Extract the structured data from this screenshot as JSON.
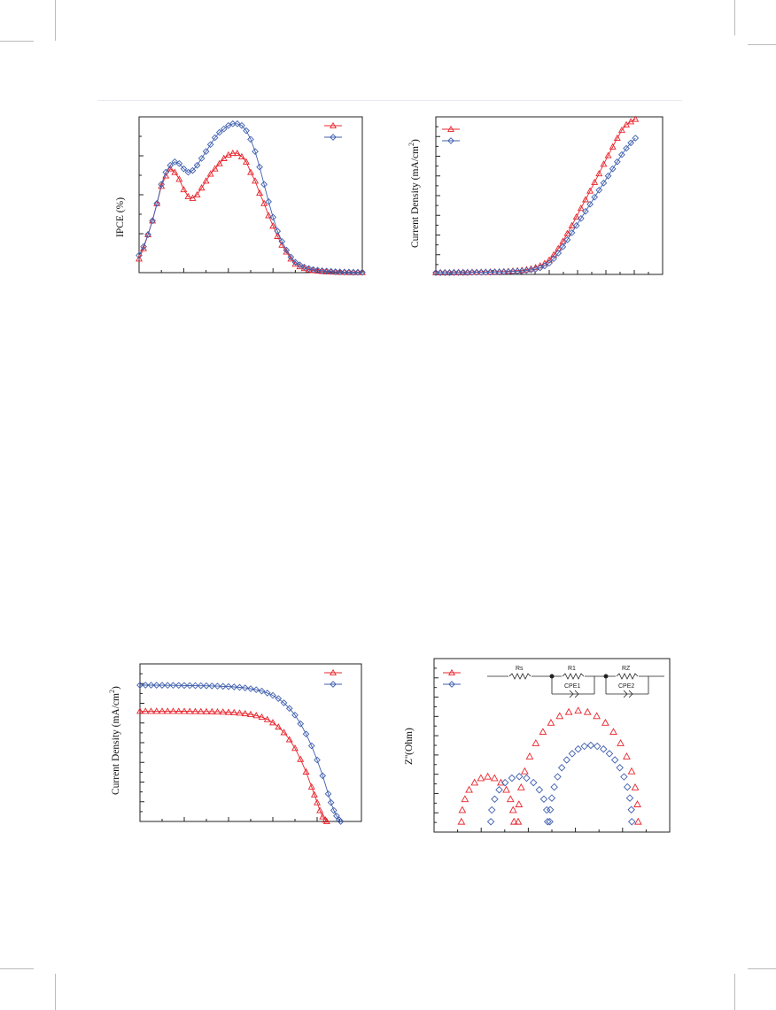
{
  "colors": {
    "red": "#e8242c",
    "blue": "#3f5fae"
  },
  "charts": [
    {
      "id": "ipce",
      "type": "scatter-line",
      "ylabel": "IPCE (%)",
      "xlabel": "",
      "xlim": [
        300,
        800
      ],
      "ylim": [
        0,
        90
      ],
      "legend_position": "top-right",
      "series": [
        {
          "name": "",
          "marker": "triangle",
          "color": "#e8242c",
          "x": [
            300,
            310,
            320,
            330,
            340,
            350,
            360,
            370,
            380,
            390,
            400,
            410,
            420,
            430,
            440,
            450,
            460,
            470,
            480,
            490,
            500,
            510,
            520,
            530,
            540,
            550,
            560,
            570,
            580,
            590,
            600,
            610,
            620,
            630,
            640,
            650,
            660,
            670,
            680,
            690,
            700,
            710,
            720,
            730,
            740,
            750,
            760,
            770,
            780,
            790,
            800
          ],
          "y": [
            8,
            14,
            22,
            30,
            40,
            50,
            56,
            60,
            58,
            54,
            48,
            44,
            43,
            45,
            49,
            53,
            57,
            60,
            63,
            66,
            68,
            69,
            69,
            67,
            64,
            58,
            53,
            46,
            40,
            33,
            27,
            21,
            16,
            12,
            8,
            5,
            3.5,
            2.5,
            1.8,
            1.3,
            1,
            0.8,
            0.6,
            0.5,
            0.4,
            0.3,
            0.3,
            0.2,
            0.2,
            0.2,
            0.2
          ]
        },
        {
          "name": "",
          "marker": "diamond",
          "color": "#3f5fae",
          "x": [
            300,
            310,
            320,
            330,
            340,
            350,
            360,
            370,
            380,
            390,
            400,
            410,
            420,
            430,
            440,
            450,
            460,
            470,
            480,
            490,
            500,
            510,
            520,
            530,
            540,
            550,
            560,
            570,
            580,
            590,
            600,
            610,
            620,
            630,
            640,
            650,
            660,
            670,
            680,
            690,
            700,
            710,
            720,
            730,
            740,
            750,
            760,
            770,
            780,
            790,
            800
          ],
          "y": [
            10,
            15,
            22,
            30,
            40,
            51,
            58,
            62,
            64,
            63,
            60,
            58,
            59,
            62,
            66,
            70,
            74,
            78,
            81,
            83,
            85,
            86,
            86,
            85,
            82,
            77,
            70,
            61,
            51,
            41,
            32,
            24,
            18,
            13,
            9,
            6,
            4.5,
            3.2,
            2.4,
            1.8,
            1.4,
            1.1,
            0.9,
            0.7,
            0.5,
            0.4,
            0.3,
            0.3,
            0.2,
            0.2,
            0.2
          ]
        }
      ]
    },
    {
      "id": "jv-dark",
      "type": "scatter-line",
      "ylabel": "Current Density (mA/cm",
      "ylabel_sup": "2",
      "ylabel_tail": ")",
      "xlabel": "",
      "xlim": [
        0,
        1
      ],
      "ylim": [
        0,
        100
      ],
      "legend_position": "top-left",
      "series": [
        {
          "name": "",
          "marker": "triangle",
          "color": "#e8242c",
          "x": [
            0,
            0.02,
            0.04,
            0.06,
            0.08,
            0.1,
            0.12,
            0.14,
            0.16,
            0.18,
            0.2,
            0.22,
            0.24,
            0.26,
            0.28,
            0.3,
            0.32,
            0.34,
            0.36,
            0.38,
            0.4,
            0.42,
            0.44,
            0.46,
            0.48,
            0.5,
            0.52,
            0.54,
            0.56,
            0.58,
            0.6,
            0.62,
            0.64,
            0.66,
            0.68,
            0.7,
            0.72,
            0.74,
            0.76,
            0.78,
            0.8,
            0.82,
            0.84,
            0.86,
            0.88
          ],
          "y": [
            1.2,
            1.2,
            1.2,
            1.2,
            1.3,
            1.3,
            1.3,
            1.3,
            1.4,
            1.4,
            1.5,
            1.5,
            1.6,
            1.6,
            1.7,
            1.8,
            2.0,
            2.2,
            2.4,
            2.7,
            3.1,
            3.6,
            4.4,
            5.5,
            7.0,
            9.2,
            12.5,
            16.5,
            21,
            26,
            31,
            36.5,
            42,
            47.5,
            53,
            58.5,
            64,
            70,
            75.5,
            81,
            86.5,
            91.5,
            95,
            97,
            98.5
          ]
        },
        {
          "name": "",
          "marker": "diamond",
          "color": "#3f5fae",
          "x": [
            0,
            0.02,
            0.04,
            0.06,
            0.08,
            0.1,
            0.12,
            0.14,
            0.16,
            0.18,
            0.2,
            0.22,
            0.24,
            0.26,
            0.28,
            0.3,
            0.32,
            0.34,
            0.36,
            0.38,
            0.4,
            0.42,
            0.44,
            0.46,
            0.48,
            0.5,
            0.52,
            0.54,
            0.56,
            0.58,
            0.6,
            0.62,
            0.64,
            0.66,
            0.68,
            0.7,
            0.72,
            0.74,
            0.76,
            0.78,
            0.8,
            0.82,
            0.84,
            0.86,
            0.88
          ],
          "y": [
            1.1,
            1.1,
            1.1,
            1.1,
            1.2,
            1.2,
            1.2,
            1.2,
            1.3,
            1.3,
            1.3,
            1.4,
            1.4,
            1.5,
            1.5,
            1.6,
            1.7,
            1.9,
            2.0,
            2.2,
            2.5,
            2.9,
            3.4,
            4.2,
            5.4,
            7.2,
            10,
            13.5,
            17.5,
            22,
            26.5,
            31,
            35.5,
            40,
            44.5,
            49,
            53.5,
            58,
            62.5,
            67,
            71.5,
            76,
            80,
            83.5,
            86.5
          ]
        }
      ]
    },
    {
      "id": "jv-light",
      "type": "scatter-line",
      "ylabel": "Current Density (mA/cm",
      "ylabel_sup": "2",
      "ylabel_tail": ")",
      "xlabel": "",
      "xlim": [
        0,
        0.8
      ],
      "ylim": [
        0,
        20
      ],
      "legend_position": "top-right",
      "series": [
        {
          "name": "",
          "marker": "triangle",
          "color": "#e8242c",
          "x": [
            0,
            0.02,
            0.04,
            0.06,
            0.08,
            0.1,
            0.12,
            0.14,
            0.16,
            0.18,
            0.2,
            0.22,
            0.24,
            0.26,
            0.28,
            0.3,
            0.32,
            0.34,
            0.36,
            0.38,
            0.4,
            0.42,
            0.44,
            0.46,
            0.48,
            0.5,
            0.52,
            0.54,
            0.56,
            0.58,
            0.6,
            0.62,
            0.63,
            0.64,
            0.65,
            0.66,
            0.67,
            0.675
          ],
          "y": [
            14.0,
            14.0,
            14.0,
            14.0,
            14.0,
            14.0,
            14.0,
            13.99,
            13.99,
            13.98,
            13.97,
            13.96,
            13.95,
            13.94,
            13.92,
            13.9,
            13.87,
            13.83,
            13.78,
            13.7,
            13.6,
            13.45,
            13.25,
            12.95,
            12.55,
            12.0,
            11.3,
            10.4,
            9.3,
            7.9,
            6.3,
            4.4,
            3.4,
            2.4,
            1.4,
            0.6,
            0.2,
            0.0
          ]
        },
        {
          "name": "",
          "marker": "diamond",
          "color": "#3f5fae",
          "x": [
            0,
            0.02,
            0.04,
            0.06,
            0.08,
            0.1,
            0.12,
            0.14,
            0.16,
            0.18,
            0.2,
            0.22,
            0.24,
            0.26,
            0.28,
            0.3,
            0.32,
            0.34,
            0.36,
            0.38,
            0.4,
            0.42,
            0.44,
            0.46,
            0.48,
            0.5,
            0.52,
            0.54,
            0.56,
            0.58,
            0.6,
            0.62,
            0.64,
            0.66,
            0.68,
            0.69,
            0.7,
            0.71,
            0.72,
            0.725
          ],
          "y": [
            17.3,
            17.3,
            17.3,
            17.29,
            17.29,
            17.28,
            17.28,
            17.27,
            17.26,
            17.25,
            17.24,
            17.23,
            17.22,
            17.2,
            17.18,
            17.15,
            17.12,
            17.08,
            17.02,
            16.95,
            16.85,
            16.72,
            16.55,
            16.3,
            16.0,
            15.6,
            15.05,
            14.35,
            13.5,
            12.4,
            11.1,
            9.6,
            7.8,
            5.8,
            3.5,
            2.4,
            1.4,
            0.7,
            0.2,
            0.0
          ]
        }
      ]
    },
    {
      "id": "eis",
      "type": "scatter",
      "ylabel": "Z''(Ohm)",
      "xlabel": "",
      "xlim": [
        0,
        56
      ],
      "ylim": [
        0,
        25
      ],
      "legend_position": "top-left",
      "circuit_labels": [
        "Rs",
        "R1",
        "CPE1",
        "RZ",
        "CPE2"
      ],
      "series": [
        {
          "name": "",
          "marker": "triangle",
          "color": "#e8242c",
          "arc1": {
            "x0": 6.5,
            "x1": 19,
            "h": 6.5
          },
          "arc2": {
            "x0": 20,
            "x1": 48.5,
            "h": 16
          }
        },
        {
          "name": "",
          "marker": "diamond",
          "color": "#3f5fae",
          "arc1": {
            "x0": 13.5,
            "x1": 27,
            "h": 6.5
          },
          "arc2": {
            "x0": 27.5,
            "x1": 47,
            "h": 11
          }
        }
      ]
    }
  ]
}
